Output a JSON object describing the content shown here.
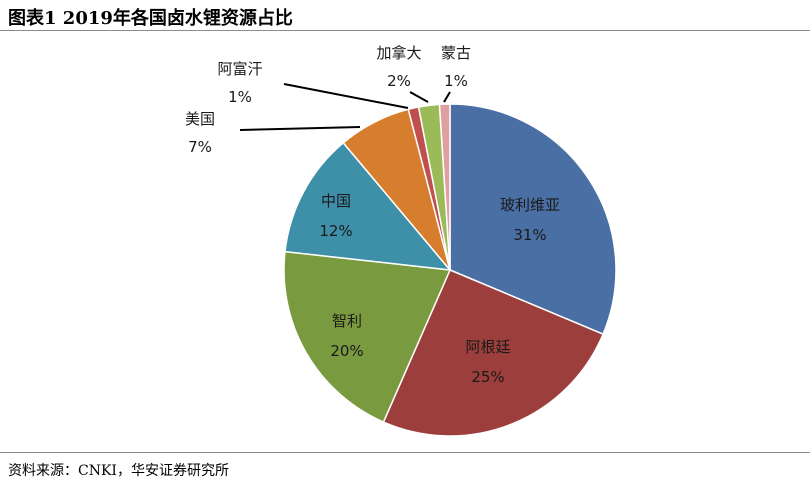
{
  "header": {
    "title": "图表1 2019年各国卤水锂资源占比"
  },
  "footer": {
    "source": "资料来源：CNKI，华安证券研究所"
  },
  "chart_data": {
    "type": "pie",
    "title": "",
    "categories": [
      "玻利维亚",
      "阿根廷",
      "智利",
      "中国",
      "美国",
      "阿富汗",
      "加拿大",
      "蒙古"
    ],
    "values": [
      31,
      25,
      20,
      12,
      7,
      1,
      2,
      1
    ],
    "value_labels": [
      "31%",
      "25%",
      "20%",
      "12%",
      "7%",
      "1%",
      "2%",
      "1%"
    ],
    "colors": [
      "#4a6fa5",
      "#9c3f3c",
      "#7a9a3f",
      "#3e8fa8",
      "#d67d2e",
      "#c0504d",
      "#9bbb59",
      "#e0a0a0"
    ],
    "start_angle_deg": 0,
    "direction": "clockwise",
    "legend": "none"
  }
}
